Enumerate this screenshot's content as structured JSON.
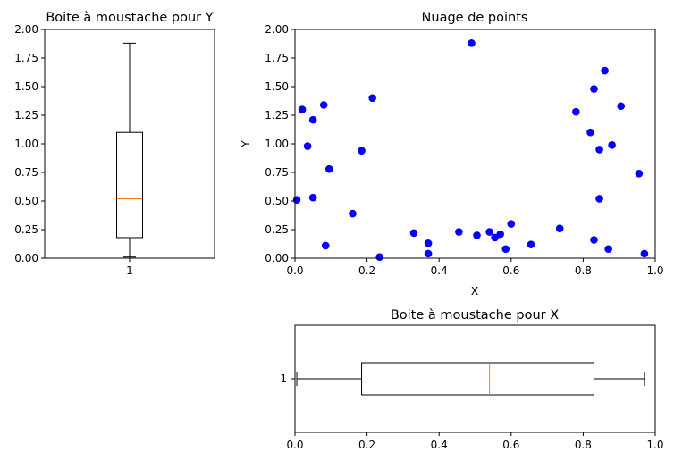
{
  "chart_data": [
    {
      "type": "box",
      "title": "Boite à moustache pour Y",
      "orientation": "vertical",
      "category_label": "1",
      "ylim": [
        0,
        2.0
      ],
      "yticks": [
        "0.00",
        "0.25",
        "0.50",
        "0.75",
        "1.00",
        "1.25",
        "1.50",
        "1.75",
        "2.00"
      ],
      "stats": {
        "whisker_low": 0.01,
        "q1": 0.18,
        "median": 0.52,
        "q3": 1.1,
        "whisker_high": 1.88
      },
      "colors": {
        "box": "#000000",
        "median": "#ff7f0e"
      }
    },
    {
      "type": "scatter",
      "title": "Nuage de points",
      "xlabel": "X",
      "ylabel": "Y",
      "xlim": [
        0,
        1.0
      ],
      "ylim": [
        0,
        2.0
      ],
      "xticks": [
        "0.0",
        "0.2",
        "0.4",
        "0.6",
        "0.8",
        "1.0"
      ],
      "yticks": [
        "0.00",
        "0.25",
        "0.50",
        "0.75",
        "1.00",
        "1.25",
        "1.50",
        "1.75",
        "2.00"
      ],
      "color": "#0000ff",
      "x": [
        0.005,
        0.02,
        0.035,
        0.05,
        0.05,
        0.08,
        0.085,
        0.095,
        0.16,
        0.185,
        0.215,
        0.235,
        0.33,
        0.37,
        0.37,
        0.455,
        0.49,
        0.505,
        0.54,
        0.555,
        0.57,
        0.585,
        0.6,
        0.655,
        0.735,
        0.78,
        0.82,
        0.83,
        0.83,
        0.845,
        0.845,
        0.86,
        0.87,
        0.88,
        0.905,
        0.955,
        0.97
      ],
      "y": [
        0.51,
        1.3,
        0.98,
        0.53,
        1.21,
        1.34,
        0.11,
        0.78,
        0.39,
        0.94,
        1.4,
        0.01,
        0.22,
        0.04,
        0.13,
        0.23,
        1.88,
        0.2,
        0.23,
        0.18,
        0.21,
        0.08,
        0.3,
        0.12,
        0.26,
        1.28,
        1.1,
        1.48,
        0.16,
        0.52,
        0.95,
        1.64,
        0.08,
        0.99,
        1.33,
        0.74,
        0.04
      ]
    },
    {
      "type": "box",
      "title": "Boite à moustache pour X",
      "orientation": "horizontal",
      "category_label": "1",
      "xlim": [
        0,
        1.0
      ],
      "xticks": [
        "0.0",
        "0.2",
        "0.4",
        "0.6",
        "0.8",
        "1.0"
      ],
      "stats": {
        "whisker_low": 0.005,
        "q1": 0.185,
        "median": 0.54,
        "q3": 0.83,
        "whisker_high": 0.97
      },
      "colors": {
        "box": "#000000",
        "median": "#ff7f0e"
      }
    }
  ]
}
